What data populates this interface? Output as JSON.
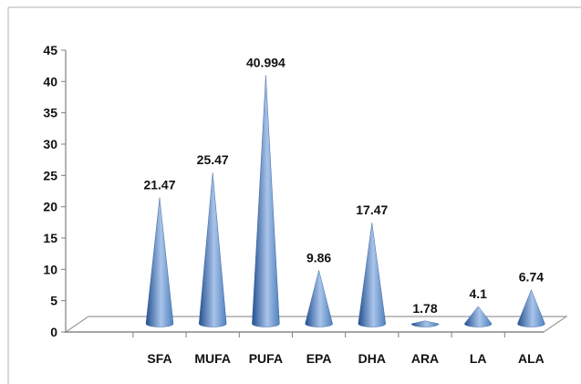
{
  "chart_data": {
    "type": "bar",
    "bar_shape": "cone-3d",
    "categories": [
      "SFA",
      "MUFA",
      "PUFA",
      "EPA",
      "DHA",
      "ARA",
      "LA",
      "ALA"
    ],
    "values": [
      21.47,
      25.47,
      40.994,
      9.86,
      17.47,
      1.78,
      4.1,
      6.74
    ],
    "data_labels": [
      "21.47",
      "25.47",
      "40.994",
      "9.86",
      "17.47",
      "1.78",
      "4.1",
      "6.74"
    ],
    "y_ticks": [
      "0",
      "5",
      "10",
      "15",
      "20",
      "25",
      "30",
      "35",
      "40",
      "45"
    ],
    "ylim": [
      0,
      45
    ],
    "title": "",
    "xlabel": "",
    "ylabel": "",
    "grid": false,
    "legend": "none",
    "colors": {
      "cone_dark": "#23508f",
      "cone_mid": "#4f81bd",
      "cone_light": "#a9c4ea",
      "floor_stroke": "#9a9a9a",
      "axis": "#7f7f7f",
      "text": "#111111"
    }
  }
}
